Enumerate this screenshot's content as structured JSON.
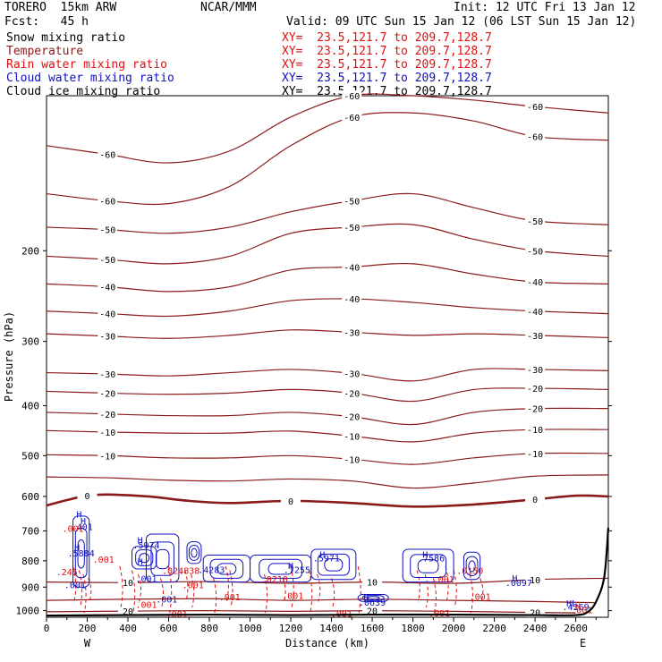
{
  "header": {
    "model": "TORERO  15km ARW",
    "center": "NCAR/MMM",
    "init": "Init: 12 UTC Fri 13 Jan 12",
    "fcst": "Fcst:   45 h",
    "valid": "Valid: 09 UTC Sun 15 Jan 12 (06 LST Sun 15 Jan 12)",
    "fields": [
      {
        "name": "Snow mixing ratio",
        "xy": "XY=  23.5,121.7 to 209.7,128.7",
        "color": "#000000"
      },
      {
        "name": "Temperature",
        "xy": "XY=  23.5,121.7 to 209.7,128.7",
        "color": "#8b1a1a"
      },
      {
        "name": "Rain water mixing ratio",
        "xy": "XY=  23.5,121.7 to 209.7,128.7",
        "color": "#e01010"
      },
      {
        "name": "Cloud water mixing ratio",
        "xy": "XY=  23.5,121.7 to 209.7,128.7",
        "color": "#1010c0"
      },
      {
        "name": "Cloud ice mixing ratio",
        "xy": "XY=  23.5,121.7 to 209.7,128.7",
        "color": "#000000"
      }
    ]
  },
  "chart_data": {
    "type": "line",
    "xlabel": "Distance (km)",
    "ylabel": "Pressure (hPa)",
    "xlim": [
      0,
      2760
    ],
    "ylim": [
      1030,
      100
    ],
    "xticks": [
      0,
      200,
      400,
      600,
      800,
      1000,
      1200,
      1400,
      1600,
      1800,
      2000,
      2200,
      2400,
      2600
    ],
    "yticks": [
      200,
      300,
      400,
      500,
      600,
      700,
      800,
      900,
      1000
    ],
    "x_end_labels": {
      "left": "W",
      "right": "E"
    },
    "colors": {
      "temperature": "#8b1a1a",
      "rain": "#e01010",
      "cloud_water": "#1010c0",
      "ground": "#000000"
    },
    "temperature_isotherms": [
      {
        "label": "-60",
        "x": [
          0,
          300,
          600,
          900,
          1200,
          1500,
          1800,
          2100,
          2400,
          2760
        ],
        "p": [
          155,
          160,
          162,
          150,
          125,
          110,
          108,
          112,
          120,
          122
        ]
      },
      {
        "label": "-60",
        "x": [
          0,
          300,
          600,
          900,
          1200,
          1500,
          1800,
          2100,
          2400,
          2760
        ],
        "p": [
          125,
          130,
          135,
          128,
          110,
          100,
          100,
          102,
          105,
          108
        ]
      },
      {
        "label": "-50",
        "x": [
          0,
          300,
          600,
          900,
          1200,
          1500,
          1800,
          2100,
          2400,
          2760
        ],
        "p": [
          180,
          182,
          185,
          180,
          168,
          160,
          155,
          165,
          175,
          178
        ]
      },
      {
        "label": "-50",
        "x": [
          0,
          300,
          600,
          900,
          1200,
          1500,
          1800,
          2100,
          2400,
          2760
        ],
        "p": [
          205,
          208,
          212,
          205,
          185,
          180,
          178,
          190,
          200,
          205
        ]
      },
      {
        "label": "-40",
        "x": [
          0,
          300,
          600,
          900,
          1200,
          1500,
          1800,
          2100,
          2400,
          2760
        ],
        "p": [
          232,
          235,
          240,
          235,
          218,
          215,
          212,
          222,
          230,
          232
        ]
      },
      {
        "label": "-40",
        "x": [
          0,
          300,
          600,
          900,
          1200,
          1500,
          1800,
          2100,
          2400,
          2760
        ],
        "p": [
          262,
          265,
          268,
          262,
          250,
          248,
          252,
          258,
          262,
          265
        ]
      },
      {
        "label": "-30",
        "x": [
          0,
          300,
          600,
          900,
          1200,
          1500,
          1800,
          2100,
          2400,
          2760
        ],
        "p": [
          290,
          293,
          296,
          292,
          285,
          288,
          292,
          290,
          292,
          295
        ]
      },
      {
        "label": "-30",
        "x": [
          0,
          300,
          600,
          900,
          1200,
          1500,
          1800,
          2100,
          2400,
          2760
        ],
        "p": [
          345,
          347,
          350,
          345,
          340,
          346,
          358,
          340,
          340,
          342
        ]
      },
      {
        "label": "-20",
        "x": [
          0,
          300,
          600,
          900,
          1200,
          1500,
          1800,
          2100,
          2400,
          2760
        ],
        "p": [
          375,
          378,
          380,
          378,
          372,
          378,
          392,
          372,
          370,
          372
        ]
      },
      {
        "label": "-20",
        "x": [
          0,
          300,
          600,
          900,
          1200,
          1500,
          1800,
          2100,
          2400,
          2760
        ],
        "p": [
          412,
          415,
          418,
          418,
          412,
          420,
          435,
          412,
          405,
          405
        ]
      },
      {
        "label": "-10",
        "x": [
          0,
          300,
          600,
          900,
          1200,
          1500,
          1800,
          2100,
          2400,
          2760
        ],
        "p": [
          447,
          450,
          452,
          452,
          448,
          458,
          470,
          452,
          445,
          445
        ]
      },
      {
        "label": "-10",
        "x": [
          0,
          300,
          600,
          900,
          1200,
          1500,
          1800,
          2100,
          2400,
          2760
        ],
        "p": [
          498,
          500,
          505,
          505,
          500,
          508,
          520,
          505,
          495,
          495
        ]
      },
      {
        "label": "",
        "x": [
          0,
          300,
          600,
          900,
          1200,
          1500,
          1800,
          2100,
          2400,
          2760
        ],
        "p": [
          550,
          552,
          558,
          560,
          555,
          560,
          578,
          565,
          548,
          545
        ]
      },
      {
        "label": "0",
        "x": [
          0,
          100,
          200,
          300,
          500,
          700,
          900,
          1200,
          1500,
          1800,
          2100,
          2400,
          2600,
          2760
        ],
        "p": [
          625,
          610,
          598,
          595,
          600,
          612,
          618,
          612,
          618,
          628,
          622,
          608,
          598,
          600
        ]
      },
      {
        "label": "10",
        "x": [
          0,
          400,
          800,
          1200,
          1600,
          2000,
          2400,
          2760
        ],
        "p": [
          880,
          882,
          878,
          885,
          880,
          885,
          870,
          865
        ]
      },
      {
        "label": "",
        "x": [
          0,
          400,
          800,
          1200,
          1600,
          2000,
          2400,
          2700
        ],
        "p": [
          955,
          950,
          948,
          955,
          950,
          955,
          960,
          965
        ]
      },
      {
        "label": "20",
        "x": [
          0,
          400,
          800,
          1200,
          1600,
          2000,
          2400,
          2600
        ],
        "p": [
          1005,
          1002,
          1000,
          1003,
          1000,
          1003,
          1008,
          1010
        ]
      }
    ],
    "cloud_water_labels": [
      {
        "label": "H",
        "x": 160,
        "p": 660
      },
      {
        "label": "H",
        "x": 180,
        "p": 680
      },
      {
        "label": ".401",
        "x": 175,
        "p": 697
      },
      {
        "label": "H",
        "x": 150,
        "p": 765
      },
      {
        "label": ".5884",
        "x": 170,
        "p": 785
      },
      {
        "label": "H",
        "x": 460,
        "p": 740
      },
      {
        "label": ".5974",
        "x": 490,
        "p": 757
      },
      {
        "label": "H",
        "x": 460,
        "p": 815
      },
      {
        "label": ".001",
        "x": 490,
        "p": 880
      },
      {
        "label": ".4283",
        "x": 810,
        "p": 845
      },
      {
        "label": "H",
        "x": 1200,
        "p": 830
      },
      {
        "label": ".7255",
        "x": 1230,
        "p": 845
      },
      {
        "label": "H",
        "x": 1355,
        "p": 790
      },
      {
        "label": ".5971",
        "x": 1375,
        "p": 802
      },
      {
        "label": "H",
        "x": 1860,
        "p": 790
      },
      {
        "label": ".7586",
        "x": 1890,
        "p": 802
      },
      {
        "label": ".001",
        "x": 140,
        "p": 905
      },
      {
        "label": ".001",
        "x": 590,
        "p": 965
      },
      {
        "label": "H",
        "x": 1570,
        "p": 957
      },
      {
        "label": ".0639",
        "x": 1600,
        "p": 977
      },
      {
        "label": "H",
        "x": 2300,
        "p": 877
      },
      {
        "label": ".0097",
        "x": 2320,
        "p": 895
      },
      {
        "label": "HL",
        "x": 2580,
        "p": 982
      },
      {
        "label": ".4269",
        "x": 2600,
        "p": 997
      }
    ],
    "rain_labels": [
      {
        "label": ".001",
        "x": 130,
        "p": 703
      },
      {
        "label": ".245",
        "x": 100,
        "p": 853
      },
      {
        "label": ".001",
        "x": 280,
        "p": 807
      },
      {
        "label": ".024",
        "x": 620,
        "p": 848
      },
      {
        "label": ".838",
        "x": 700,
        "p": 848
      },
      {
        "label": ".001",
        "x": 720,
        "p": 905
      },
      {
        "label": ".001",
        "x": 900,
        "p": 955
      },
      {
        "label": ".0210",
        "x": 1120,
        "p": 882
      },
      {
        "label": ".001",
        "x": 1210,
        "p": 948
      },
      {
        "label": ".001",
        "x": 1450,
        "p": 1028
      },
      {
        "label": ".001",
        "x": 1950,
        "p": 882
      },
      {
        "label": ".0150",
        "x": 2080,
        "p": 848
      },
      {
        "label": ".001",
        "x": 2130,
        "p": 953
      },
      {
        "label": ".001",
        "x": 1930,
        "p": 1026
      },
      {
        "label": ".001",
        "x": 490,
        "p": 988
      },
      {
        "label": ".001",
        "x": 640,
        "p": 1030
      },
      {
        "label": "H",
        "x": 2610,
        "p": 995
      },
      {
        "label": ".001",
        "x": 2630,
        "p": 1011
      }
    ],
    "ground_line": {
      "x": [
        0,
        400,
        800,
        1200,
        1600,
        2000,
        2400,
        2600,
        2660,
        2700,
        2740,
        2760
      ],
      "p": [
        1022,
        1020,
        1018,
        1020,
        1018,
        1018,
        1020,
        1020,
        1005,
        960,
        860,
        690
      ]
    }
  }
}
